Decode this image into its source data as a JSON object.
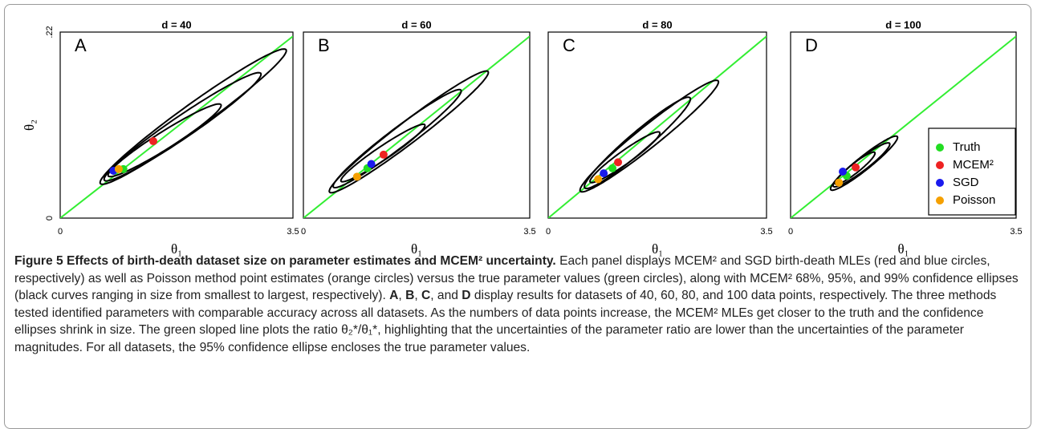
{
  "chart_data": [
    {
      "type": "scatter",
      "title": "d = 40",
      "panel_label": "A",
      "x_label": "θ₁",
      "y_label": "θ₂",
      "xlim": [
        0,
        3.5
      ],
      "ylim": [
        0,
        0.22
      ],
      "xticks": [
        0,
        3.5
      ],
      "yticks": [
        0,
        {
          "value": 0.22,
          "label": ".22"
        }
      ],
      "ratio_line": {
        "color": "#33ee33",
        "x": [
          0,
          3.5
        ],
        "values": [
          0,
          0.215
        ]
      },
      "ellipses": [
        {
          "cx": 1.57,
          "cy": 0.092,
          "sx": 0.85,
          "sy": 0.043,
          "rho": 0.96
        },
        {
          "cx": 1.84,
          "cy": 0.108,
          "sx": 1.18,
          "sy": 0.064,
          "rho": 0.97
        },
        {
          "cx": 2.0,
          "cy": 0.12,
          "sx": 1.4,
          "sy": 0.08,
          "rho": 0.975
        }
      ],
      "series": [
        {
          "name": "Truth",
          "color": "#22dd22",
          "x": [
            0.95
          ],
          "values": [
            0.058
          ]
        },
        {
          "name": "MCEM²",
          "color": "#ee2222",
          "x": [
            1.4
          ],
          "values": [
            0.091
          ]
        },
        {
          "name": "SGD",
          "color": "#1a1aee",
          "x": [
            0.8
          ],
          "values": [
            0.056
          ]
        },
        {
          "name": "Poisson",
          "color": "#f5a000",
          "x": [
            0.88
          ],
          "values": [
            0.058
          ]
        }
      ]
    },
    {
      "type": "scatter",
      "title": "d = 60",
      "panel_label": "B",
      "x_label": "θ₁",
      "xlim": [
        0,
        3.5
      ],
      "ylim": [
        0,
        0.22
      ],
      "xticks": [
        0,
        3.5
      ],
      "ratio_line": {
        "color": "#33ee33",
        "x": [
          0,
          3.5
        ],
        "values": [
          0,
          0.215
        ]
      },
      "ellipses": [
        {
          "cx": 1.23,
          "cy": 0.077,
          "sx": 0.65,
          "sy": 0.034,
          "rho": 0.96
        },
        {
          "cx": 1.45,
          "cy": 0.094,
          "sx": 0.99,
          "sy": 0.058,
          "rho": 0.97
        },
        {
          "cx": 1.63,
          "cy": 0.102,
          "sx": 1.23,
          "sy": 0.072,
          "rho": 0.975
        }
      ],
      "series": [
        {
          "name": "Truth",
          "color": "#22dd22",
          "x": [
            0.99
          ],
          "values": [
            0.059
          ]
        },
        {
          "name": "MCEM²",
          "color": "#ee2222",
          "x": [
            1.24
          ],
          "values": [
            0.075
          ]
        },
        {
          "name": "SGD",
          "color": "#1a1aee",
          "x": [
            1.05
          ],
          "values": [
            0.064
          ]
        },
        {
          "name": "Poisson",
          "color": "#f5a000",
          "x": [
            0.83
          ],
          "values": [
            0.049
          ]
        }
      ]
    },
    {
      "type": "scatter",
      "title": "d = 80",
      "panel_label": "C",
      "x_label": "θ₁",
      "xlim": [
        0,
        3.5
      ],
      "ylim": [
        0,
        0.22
      ],
      "xticks": [
        0,
        3.5
      ],
      "ratio_line": {
        "color": "#33ee33",
        "x": [
          0,
          3.5
        ],
        "values": [
          0,
          0.215
        ]
      },
      "ellipses": [
        {
          "cx": 1.23,
          "cy": 0.072,
          "sx": 0.56,
          "sy": 0.03,
          "rho": 0.95
        },
        {
          "cx": 1.43,
          "cy": 0.089,
          "sx": 0.85,
          "sy": 0.054,
          "rho": 0.96
        },
        {
          "cx": 1.62,
          "cy": 0.097,
          "sx": 1.11,
          "sy": 0.066,
          "rho": 0.97
        }
      ],
      "series": [
        {
          "name": "Truth",
          "color": "#22dd22",
          "x": [
            1.03
          ],
          "values": [
            0.059
          ]
        },
        {
          "name": "MCEM²",
          "color": "#ee2222",
          "x": [
            1.12
          ],
          "values": [
            0.066
          ]
        },
        {
          "name": "SGD",
          "color": "#1a1aee",
          "x": [
            0.89
          ],
          "values": [
            0.053
          ]
        },
        {
          "name": "Poisson",
          "color": "#f5a000",
          "x": [
            0.8
          ],
          "values": [
            0.046
          ]
        }
      ]
    },
    {
      "type": "scatter",
      "title": "d = 100",
      "panel_label": "D",
      "x_label": "θ₁",
      "legend": "lower right",
      "xlim": [
        0,
        3.5
      ],
      "ylim": [
        0,
        0.22
      ],
      "xticks": [
        0,
        3.5
      ],
      "ratio_line": {
        "color": "#33ee33",
        "x": [
          0,
          3.5
        ],
        "values": [
          0,
          0.215
        ]
      },
      "ellipses": [
        {
          "cx": 1.0,
          "cy": 0.059,
          "sx": 0.31,
          "sy": 0.019,
          "rho": 0.93
        },
        {
          "cx": 1.1,
          "cy": 0.063,
          "sx": 0.44,
          "sy": 0.026,
          "rho": 0.94
        },
        {
          "cx": 1.14,
          "cy": 0.065,
          "sx": 0.52,
          "sy": 0.032,
          "rho": 0.95
        }
      ],
      "series": [
        {
          "name": "Truth",
          "color": "#22dd22",
          "x": [
            0.87
          ],
          "values": [
            0.05
          ]
        },
        {
          "name": "MCEM²",
          "color": "#ee2222",
          "x": [
            1.01
          ],
          "values": [
            0.06
          ]
        },
        {
          "name": "SGD",
          "color": "#1a1aee",
          "x": [
            0.81
          ],
          "values": [
            0.055
          ]
        },
        {
          "name": "Poisson",
          "color": "#f5a000",
          "x": [
            0.75
          ],
          "values": [
            0.042
          ]
        }
      ]
    }
  ],
  "caption": {
    "label": "Figure 5",
    "title": "Effects of birth-death dataset size on parameter estimates and MCEM² uncertainty.",
    "body": [
      "Each panel displays MCEM² and SGD birth-death MLEs (red and blue circles, respectively) as well as Poisson method point estimates (orange circles) versus the true parameter values (green circles), along with MCEM² 68%, 95%, and 99% confidence ellipses (black curves ranging in size from smallest to largest, respectively). ",
      "A",
      ", ",
      "B",
      ", ",
      "C",
      ", and ",
      "D",
      " display results for datasets of 40, 60, 80, and 100 data points, respectively. The three methods tested identified parameters with comparable accuracy across all datasets. As the numbers of data points increase, the MCEM² MLEs get closer to the truth and the confidence ellipses shrink in size. The green sloped line plots the ratio θ₂*/θ₁*, highlighting that the uncertainties of the parameter ratio are lower than the uncertainties of the parameter magnitudes. For all datasets, the 95% confidence ellipse encloses the true parameter values."
    ]
  }
}
